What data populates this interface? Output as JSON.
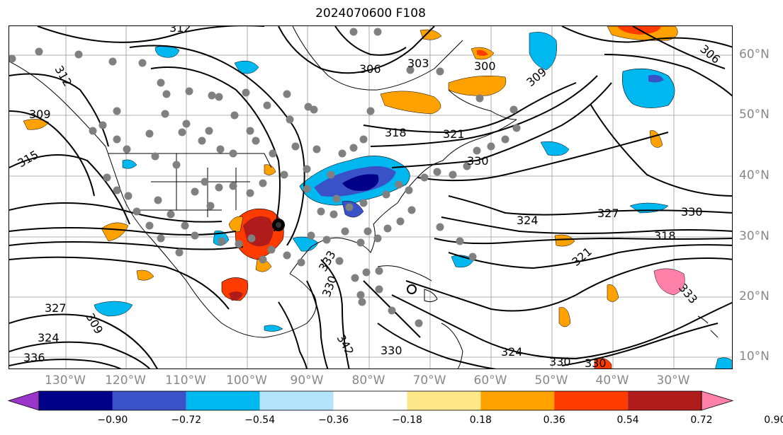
{
  "title": "2024070600 F108",
  "map": {
    "lon_labels": [
      "130°W",
      "120°W",
      "110°W",
      "100°W",
      "90°W",
      "80°W",
      "70°W",
      "60°W",
      "50°W",
      "40°W",
      "30°W"
    ],
    "lat_labels": [
      "60°N",
      "50°N",
      "40°N",
      "30°N",
      "20°N",
      "10°N"
    ],
    "contour_labels": [
      "312",
      "306",
      "303",
      "300",
      "306",
      "309",
      "312",
      "309",
      "315",
      "318",
      "321",
      "330",
      "327",
      "330",
      "324",
      "318",
      "321",
      "333",
      "327",
      "324",
      "309",
      "336",
      "324",
      "330",
      "330",
      "333",
      "330",
      "342",
      "330"
    ]
  },
  "colorbar": {
    "ticks": [
      "−0.90",
      "−0.72",
      "−0.54",
      "−0.36",
      "−0.18",
      "0.18",
      "0.36",
      "0.54",
      "0.72",
      "0.90"
    ],
    "colors": [
      "#9a35c9",
      "#000088",
      "#3a52c8",
      "#00b8f0",
      "#b4e4fb",
      "#ffffff",
      "#ffe88a",
      "#ffa200",
      "#ff3b00",
      "#b01c1c",
      "#ff80a8"
    ]
  }
}
